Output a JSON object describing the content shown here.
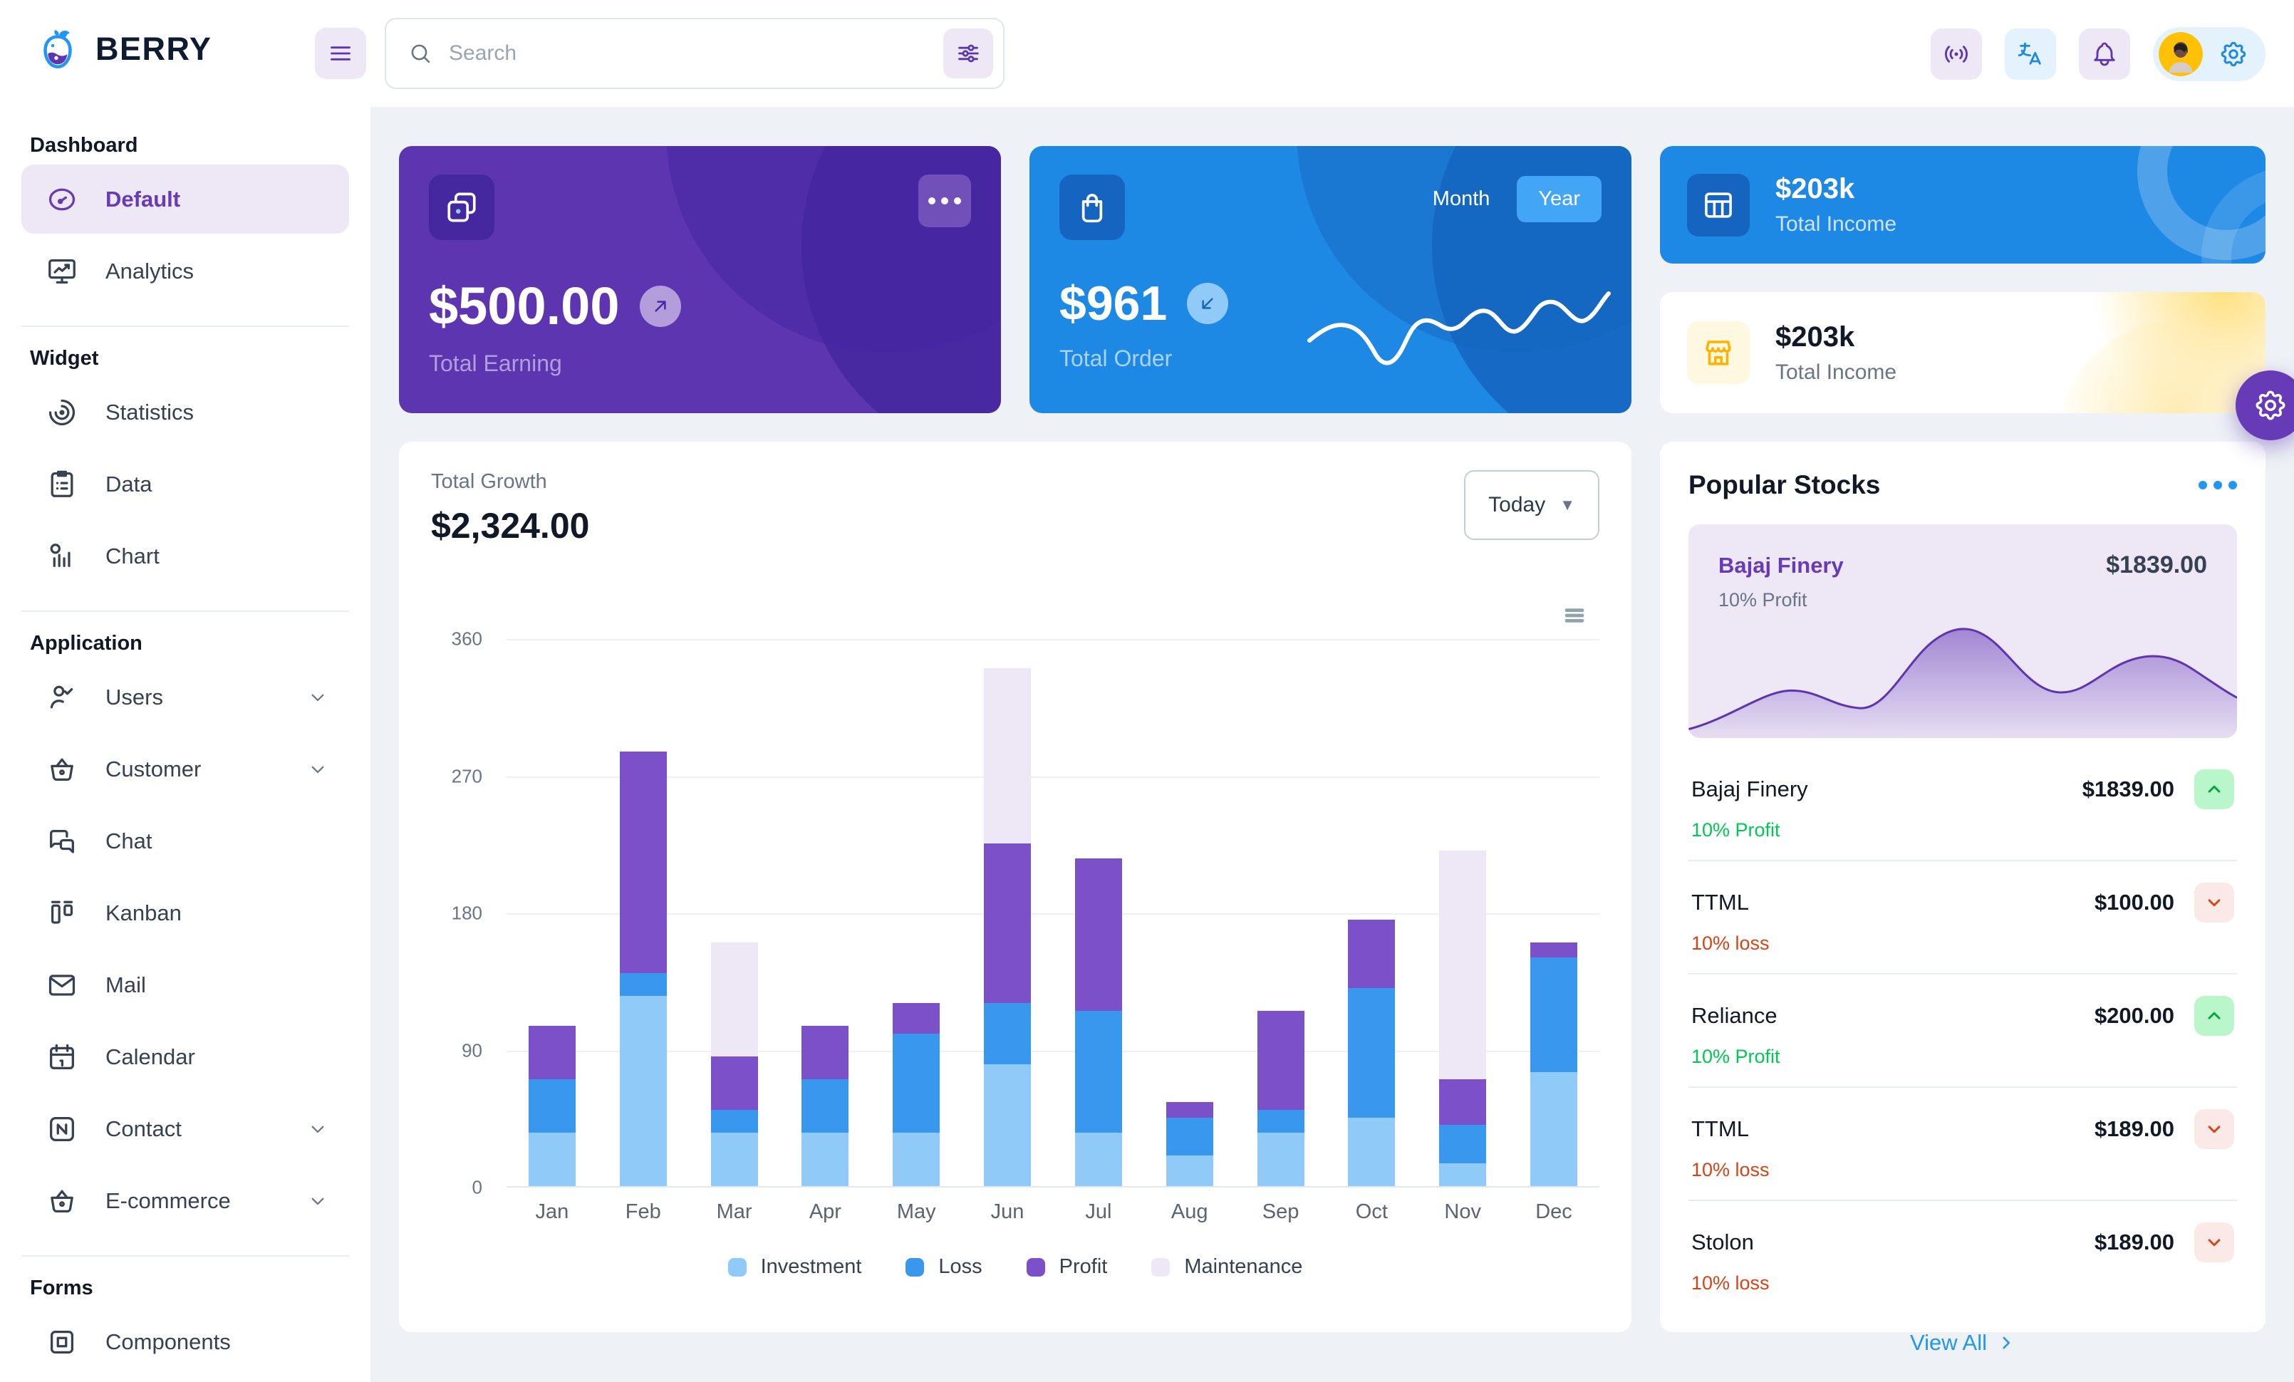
{
  "brand": {
    "name": "BERRY"
  },
  "header": {
    "search_placeholder": "Search"
  },
  "sidebar": {
    "sections": [
      {
        "heading": "Dashboard",
        "divider": true,
        "items": [
          {
            "label": "Default",
            "icon": "dashboard",
            "active": true
          },
          {
            "label": "Analytics",
            "icon": "analytics"
          }
        ]
      },
      {
        "heading": "Widget",
        "divider": true,
        "items": [
          {
            "label": "Statistics",
            "icon": "statistics"
          },
          {
            "label": "Data",
            "icon": "data"
          },
          {
            "label": "Chart",
            "icon": "chart"
          }
        ]
      },
      {
        "heading": "Application",
        "divider": true,
        "items": [
          {
            "label": "Users",
            "icon": "users",
            "expandable": true
          },
          {
            "label": "Customer",
            "icon": "basket",
            "expandable": true
          },
          {
            "label": "Chat",
            "icon": "chat"
          },
          {
            "label": "Kanban",
            "icon": "kanban"
          },
          {
            "label": "Mail",
            "icon": "mail"
          },
          {
            "label": "Calendar",
            "icon": "calendar"
          },
          {
            "label": "Contact",
            "icon": "contact",
            "expandable": true
          },
          {
            "label": "E-commerce",
            "icon": "basket",
            "expandable": true
          }
        ]
      },
      {
        "heading": "Forms",
        "divider": false,
        "items": [
          {
            "label": "Components",
            "icon": "box"
          }
        ]
      }
    ]
  },
  "cards": {
    "earning": {
      "value": "$500.00",
      "label": "Total Earning"
    },
    "order": {
      "value": "$961",
      "label": "Total Order",
      "toggle": [
        "Month",
        "Year"
      ],
      "active_toggle": "Year"
    },
    "income_primary": {
      "value": "$203k",
      "label": "Total Income"
    },
    "income_secondary": {
      "value": "$203k",
      "label": "Total Income"
    }
  },
  "growth": {
    "title": "Total Growth",
    "value": "$2,324.00",
    "range_label": "Today"
  },
  "chart_data": {
    "type": "bar",
    "stacked": true,
    "title": "Total Growth",
    "categories": [
      "Jan",
      "Feb",
      "Mar",
      "Apr",
      "May",
      "Jun",
      "Jul",
      "Aug",
      "Sep",
      "Oct",
      "Nov",
      "Dec"
    ],
    "series": [
      {
        "name": "Investment",
        "color": "#90caf9",
        "values": [
          35,
          125,
          35,
          35,
          35,
          80,
          35,
          20,
          35,
          45,
          15,
          75
        ]
      },
      {
        "name": "Loss",
        "color": "#3a97ee",
        "values": [
          35,
          15,
          15,
          35,
          65,
          40,
          80,
          25,
          15,
          85,
          25,
          75
        ]
      },
      {
        "name": "Profit",
        "color": "#7c50c8",
        "values": [
          35,
          145,
          35,
          35,
          20,
          105,
          100,
          10,
          65,
          45,
          30,
          10
        ]
      },
      {
        "name": "Maintenance",
        "color": "#ede7f6",
        "values": [
          0,
          0,
          75,
          0,
          0,
          115,
          0,
          0,
          0,
          0,
          150,
          0
        ]
      }
    ],
    "ylim": [
      0,
      360
    ],
    "yticks": [
      0,
      90,
      180,
      270,
      360
    ],
    "legend_position": "bottom",
    "grid": true
  },
  "stocks": {
    "title": "Popular Stocks",
    "featured": {
      "name": "Bajaj Finery",
      "sub": "10% Profit",
      "price": "$1839.00"
    },
    "rows": [
      {
        "name": "Bajaj Finery",
        "sub": "10% Profit",
        "price": "$1839.00",
        "direction": "up"
      },
      {
        "name": "TTML",
        "sub": "10% loss",
        "price": "$100.00",
        "direction": "down"
      },
      {
        "name": "Reliance",
        "sub": "10% Profit",
        "price": "$200.00",
        "direction": "up"
      },
      {
        "name": "TTML",
        "sub": "10% loss",
        "price": "$189.00",
        "direction": "down"
      },
      {
        "name": "Stolon",
        "sub": "10% loss",
        "price": "$189.00",
        "direction": "down"
      }
    ],
    "view_all": "View All"
  }
}
